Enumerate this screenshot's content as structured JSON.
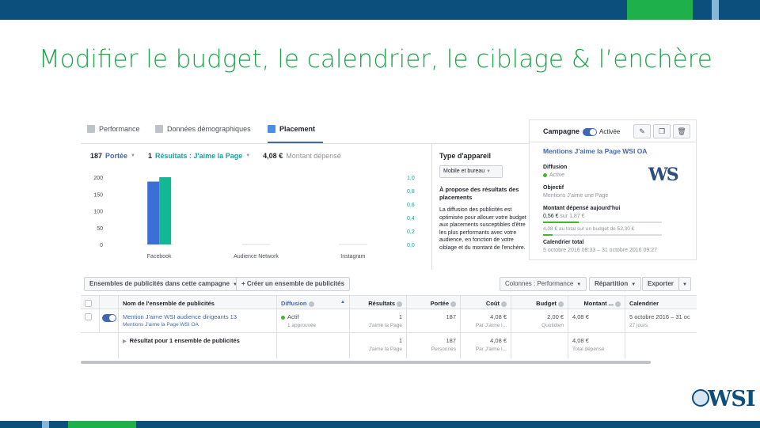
{
  "slide": {
    "title": "Modifier le budget, le calendrier, le ciblage & l’enchère",
    "logo_text": "WSI"
  },
  "tabs": [
    {
      "label": "Performance",
      "icon": "bar-chart-icon",
      "active": false
    },
    {
      "label": "Données démographiques",
      "icon": "people-icon",
      "active": false
    },
    {
      "label": "Placement",
      "icon": "placement-icon",
      "active": true
    }
  ],
  "metrics": {
    "reach_value": "187",
    "reach_label": "Portée",
    "results_value": "1",
    "results_label": "Résultats : J'aime la Page",
    "spent_value": "4,08 €",
    "spent_label": "Montant dépensé"
  },
  "chart_data": {
    "type": "bar",
    "categories": [
      "Facebook",
      "Audience Network",
      "Instagram"
    ],
    "series": [
      {
        "values": [
          187,
          0,
          0
        ],
        "color": "#3b6fd6"
      },
      {
        "values": [
          1,
          0,
          0
        ],
        "color": "#12b893"
      }
    ],
    "y_left_ticks": [
      "200",
      "150",
      "100",
      "50",
      "0"
    ],
    "y_right_ticks": [
      "1,0",
      "0,8",
      "0,6",
      "0,4",
      "0,2",
      "0,0"
    ],
    "ylim_left": [
      0,
      200
    ],
    "ylim_right": [
      0,
      1.0
    ]
  },
  "device": {
    "title": "Type d'appareil",
    "select_value": "Mobile et bureau",
    "about_title": "À propose des résultats des placements",
    "about_text": "La diffusion des publicités est optimisée pour allouer votre budget aux placements susceptibles d'être les plus performants avec votre audience, en fonction de votre ciblage et du montant de l'enchère."
  },
  "panel": {
    "header_label": "Campagne",
    "status": "Activée",
    "name": "Mentions J'aime la Page WSI OA",
    "diffusion_label": "Diffusion",
    "diffusion_value": "Active",
    "objective_label": "Objectif",
    "objective_value": "Mentions J'aime une Page",
    "spent_today_label": "Montant dépensé aujourd'hui",
    "spent_today_value": "0,56 €",
    "spent_today_of": "sur 1,87 €",
    "spent_today_progress": 0.3,
    "total_text": "4,08 € au total sur un budget de 52,30 €",
    "total_progress": 0.08,
    "calendar_label": "Calendrier total",
    "calendar_value": "5 octobre 2016 08:33 – 31 octobre 2016 09:27",
    "logo_text": "WS"
  },
  "toolbar": {
    "adsets_btn": "Ensembles de publicités dans cette campagne",
    "create_btn": "Créer un ensemble de publicités",
    "columns_btn": "Colonnes : Performance",
    "breakdown_btn": "Répartition",
    "export_btn": "Exporter"
  },
  "table": {
    "headers": [
      "Nom de l'ensemble de publicités",
      "Diffusion",
      "Résultats",
      "Portée",
      "Coût",
      "Budget",
      "Montant ...",
      "Calendrier"
    ],
    "row": {
      "name": "Mention J'aime WSI audience dirigeants 13",
      "campaign": "Mentions J'aime la Page WSI OA",
      "diffusion": "Actif",
      "diffusion_sub": "1 approuvée",
      "results": "1",
      "results_sub": "J'aime la Page",
      "reach": "187",
      "cost": "4,08 €",
      "cost_sub": "Par J'aime l...",
      "budget": "2,00 €",
      "budget_sub": "Quotidien",
      "spent": "4,08 €",
      "calendar": "5 octobre 2016 – 31 oc",
      "calendar_sub": "27 jours"
    },
    "summary": {
      "label": "Résultat pour 1 ensemble de publicités",
      "results": "1",
      "results_sub": "J'aime la Page",
      "reach": "187",
      "reach_sub": "Personnes",
      "cost": "4,08 €",
      "cost_sub": "Par J'aime l...",
      "spent": "4,08 €",
      "spent_sub": "Total dépensé"
    }
  }
}
